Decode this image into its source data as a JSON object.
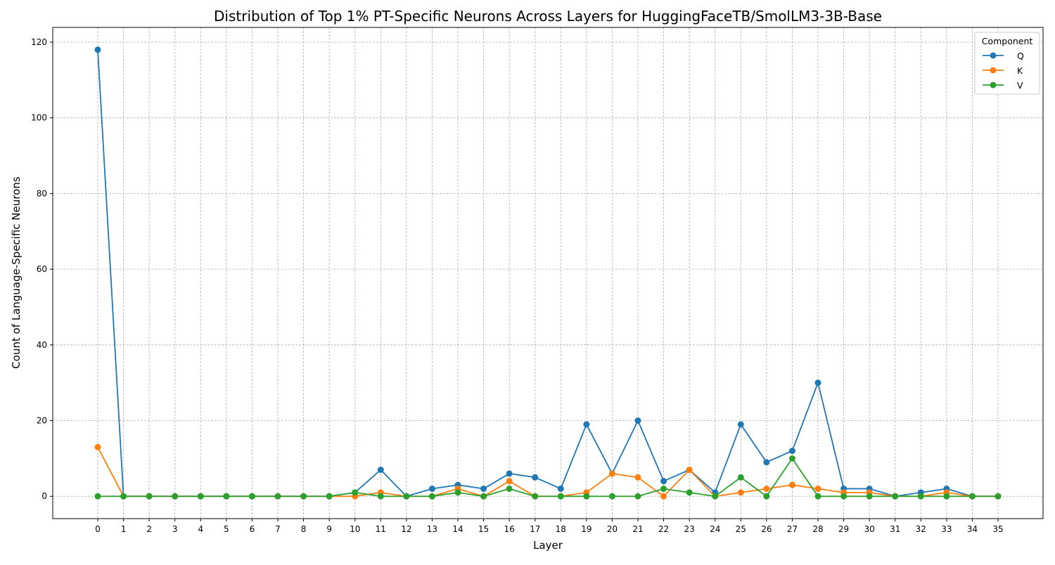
{
  "chart_data": {
    "type": "line",
    "title": "Distribution of Top 1% PT-Specific Neurons Across Layers for HuggingFaceTB/SmolLM3-3B-Base",
    "xlabel": "Layer",
    "ylabel": "Count of Language-Specific Neurons",
    "x": [
      0,
      1,
      2,
      3,
      4,
      5,
      6,
      7,
      8,
      9,
      10,
      11,
      12,
      13,
      14,
      15,
      16,
      17,
      18,
      19,
      20,
      21,
      22,
      23,
      24,
      25,
      26,
      27,
      28,
      29,
      30,
      31,
      32,
      33,
      34,
      35
    ],
    "x_tick_labels": [
      "0",
      "1",
      "2",
      "3",
      "4",
      "5",
      "6",
      "7",
      "8",
      "9",
      "10",
      "11",
      "12",
      "13",
      "14",
      "15",
      "16",
      "17",
      "18",
      "19",
      "20",
      "21",
      "22",
      "23",
      "24",
      "25",
      "26",
      "27",
      "28",
      "29",
      "30",
      "31",
      "32",
      "33",
      "34",
      "35"
    ],
    "y_ticks": [
      0,
      20,
      40,
      60,
      80,
      100,
      120
    ],
    "y_tick_labels": [
      "0",
      "20",
      "40",
      "60",
      "80",
      "100",
      "120"
    ],
    "xlim": [
      -1.75,
      36.75
    ],
    "ylim": [
      -5.9,
      123.9
    ],
    "grid": true,
    "legend": {
      "title": "Component",
      "placement": "top-right"
    },
    "series": [
      {
        "name": "Q",
        "color": "#1f77b4",
        "values": [
          118,
          0,
          0,
          0,
          0,
          0,
          0,
          0,
          0,
          0,
          1,
          7,
          0,
          2,
          3,
          2,
          6,
          5,
          2,
          19,
          6,
          20,
          4,
          7,
          1,
          19,
          9,
          12,
          30,
          2,
          2,
          0,
          1,
          2,
          0,
          0
        ]
      },
      {
        "name": "K",
        "color": "#ff7f0e",
        "values": [
          13,
          0,
          0,
          0,
          0,
          0,
          0,
          0,
          0,
          0,
          0,
          1,
          0,
          0,
          2,
          0,
          4,
          0,
          0,
          1,
          6,
          5,
          0,
          7,
          0,
          1,
          2,
          3,
          2,
          1,
          1,
          0,
          0,
          1,
          0,
          0
        ]
      },
      {
        "name": "V",
        "color": "#2ca02c",
        "values": [
          0,
          0,
          0,
          0,
          0,
          0,
          0,
          0,
          0,
          0,
          1,
          0,
          0,
          0,
          1,
          0,
          2,
          0,
          0,
          0,
          0,
          0,
          2,
          1,
          0,
          5,
          0,
          10,
          0,
          0,
          0,
          0,
          0,
          0,
          0,
          0
        ]
      }
    ]
  }
}
